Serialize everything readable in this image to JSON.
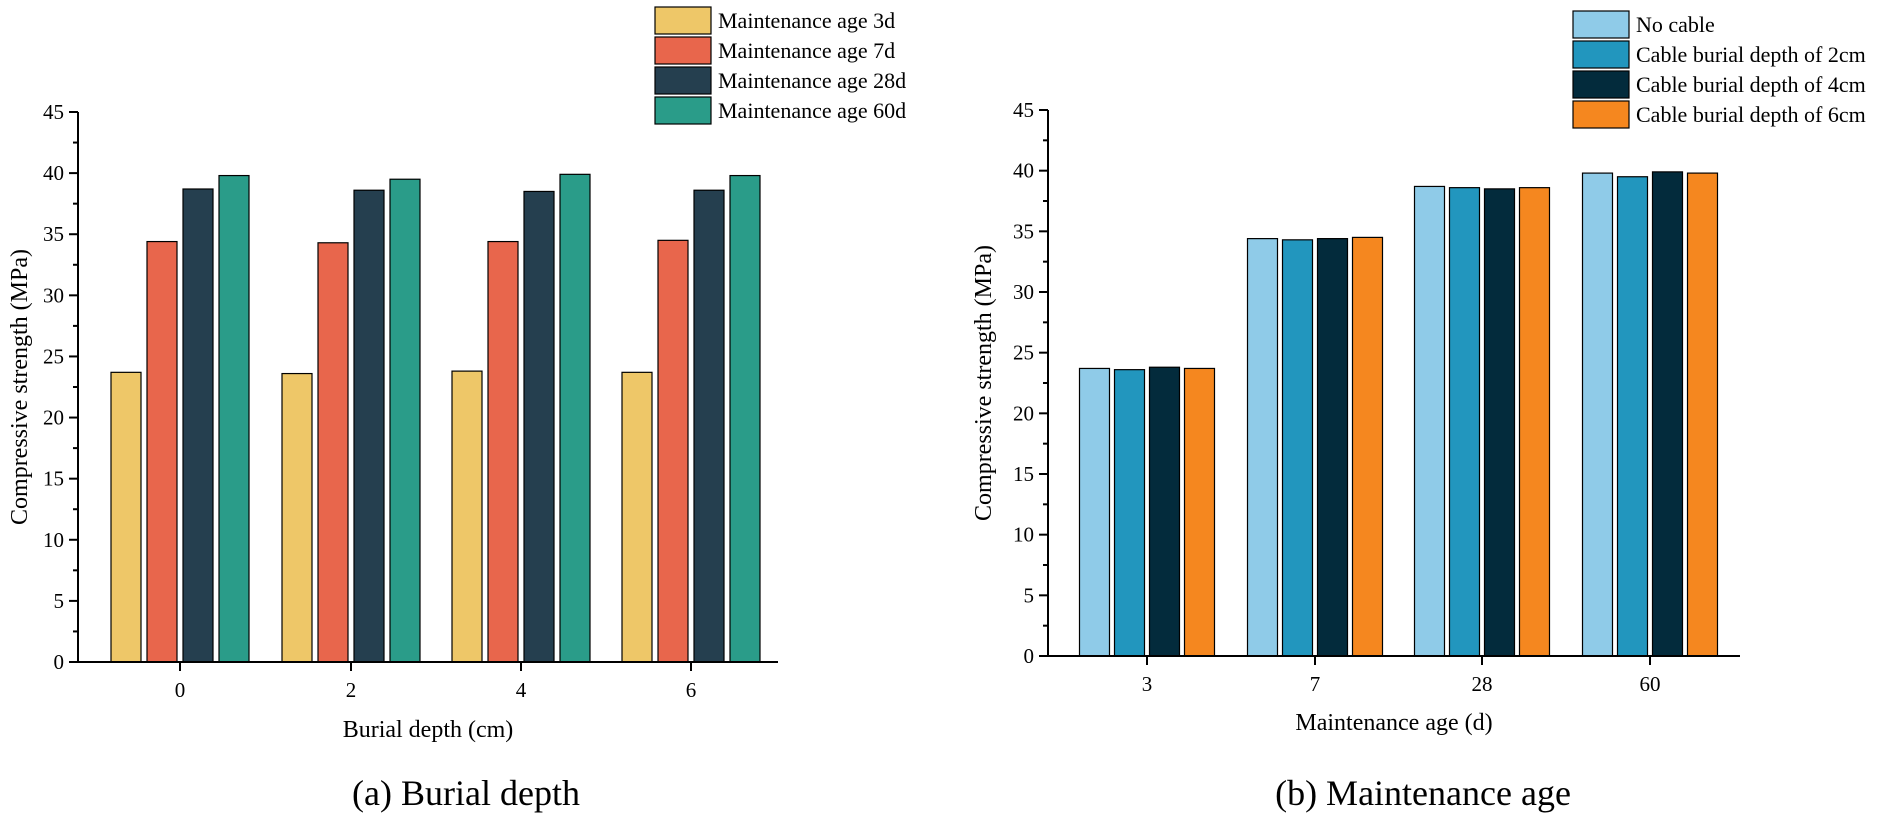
{
  "chart_data": [
    {
      "type": "bar",
      "caption": "(a) Burial depth",
      "categories": [
        "0",
        "2",
        "4",
        "6"
      ],
      "series": [
        {
          "name": "Maintenance age 3d",
          "color": "#EEC768",
          "values": [
            23.7,
            23.6,
            23.8,
            23.7
          ]
        },
        {
          "name": "Maintenance age 7d",
          "color": "#E8664C",
          "values": [
            34.4,
            34.3,
            34.4,
            34.5
          ]
        },
        {
          "name": "Maintenance age 28d",
          "color": "#253F4F",
          "values": [
            38.7,
            38.6,
            38.5,
            38.6
          ]
        },
        {
          "name": "Maintenance age 60d",
          "color": "#2A9C89",
          "values": [
            39.8,
            39.5,
            39.9,
            39.8
          ]
        }
      ],
      "xlabel": "Burial depth (cm)",
      "ylabel": "Compressive strength (MPa)",
      "ylim": [
        0,
        45
      ],
      "yticks": [
        0,
        5,
        10,
        15,
        20,
        25,
        30,
        35,
        40,
        45
      ],
      "legend_position": "top-right"
    },
    {
      "type": "bar",
      "caption": "(b) Maintenance age",
      "categories": [
        "3",
        "7",
        "28",
        "60"
      ],
      "series": [
        {
          "name": "No cable",
          "color": "#8FCBE8",
          "values": [
            23.7,
            34.4,
            38.7,
            39.8
          ]
        },
        {
          "name": "Cable burial depth of 2cm",
          "color": "#2296BE",
          "values": [
            23.6,
            34.3,
            38.6,
            39.5
          ]
        },
        {
          "name": "Cable burial depth of 4cm",
          "color": "#032B3C",
          "values": [
            23.8,
            34.4,
            38.5,
            39.9
          ]
        },
        {
          "name": "Cable burial depth of 6cm",
          "color": "#F5871F",
          "values": [
            23.7,
            34.5,
            38.6,
            39.8
          ]
        }
      ],
      "xlabel": "Maintenance age (d)",
      "ylabel": "Compressive strength (MPa)",
      "ylim": [
        0,
        45
      ],
      "yticks": [
        0,
        5,
        10,
        15,
        20,
        25,
        30,
        35,
        40,
        45
      ],
      "legend_position": "top-right"
    }
  ]
}
